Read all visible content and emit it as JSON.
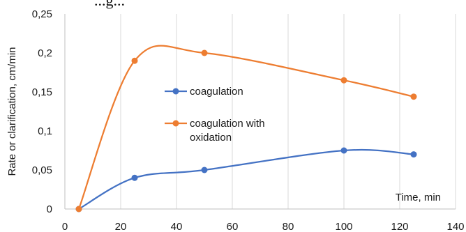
{
  "header_fragment": "...g...",
  "chart_data": {
    "type": "line",
    "x": [
      5,
      25,
      50,
      100,
      125
    ],
    "series": [
      {
        "name": "coagulation",
        "color": "#4472C4",
        "values": [
          0.0,
          0.04,
          0.05,
          0.075,
          0.07
        ]
      },
      {
        "name": "coagulation with oxidation",
        "color": "#ED7D31",
        "values": [
          0.0,
          0.19,
          0.2,
          0.165,
          0.144
        ]
      }
    ],
    "legend": {
      "items": [
        {
          "lines": [
            "coagulation"
          ]
        },
        {
          "lines": [
            "coagulation with",
            "oxidation"
          ]
        }
      ],
      "position": "center-left inside"
    },
    "xlabel": "Time, min",
    "ylabel": "Rate or clarification, cm/min",
    "xlim": [
      0,
      140
    ],
    "ylim": [
      0,
      0.25
    ],
    "xticks": [
      "0",
      "20",
      "40",
      "60",
      "80",
      "100",
      "120",
      "140"
    ],
    "yticks": [
      "0",
      "0,05",
      "0,1",
      "0,15",
      "0,2",
      "0,25"
    ],
    "grid": {
      "vertical": true,
      "horizontal": false
    },
    "smooth": true
  }
}
